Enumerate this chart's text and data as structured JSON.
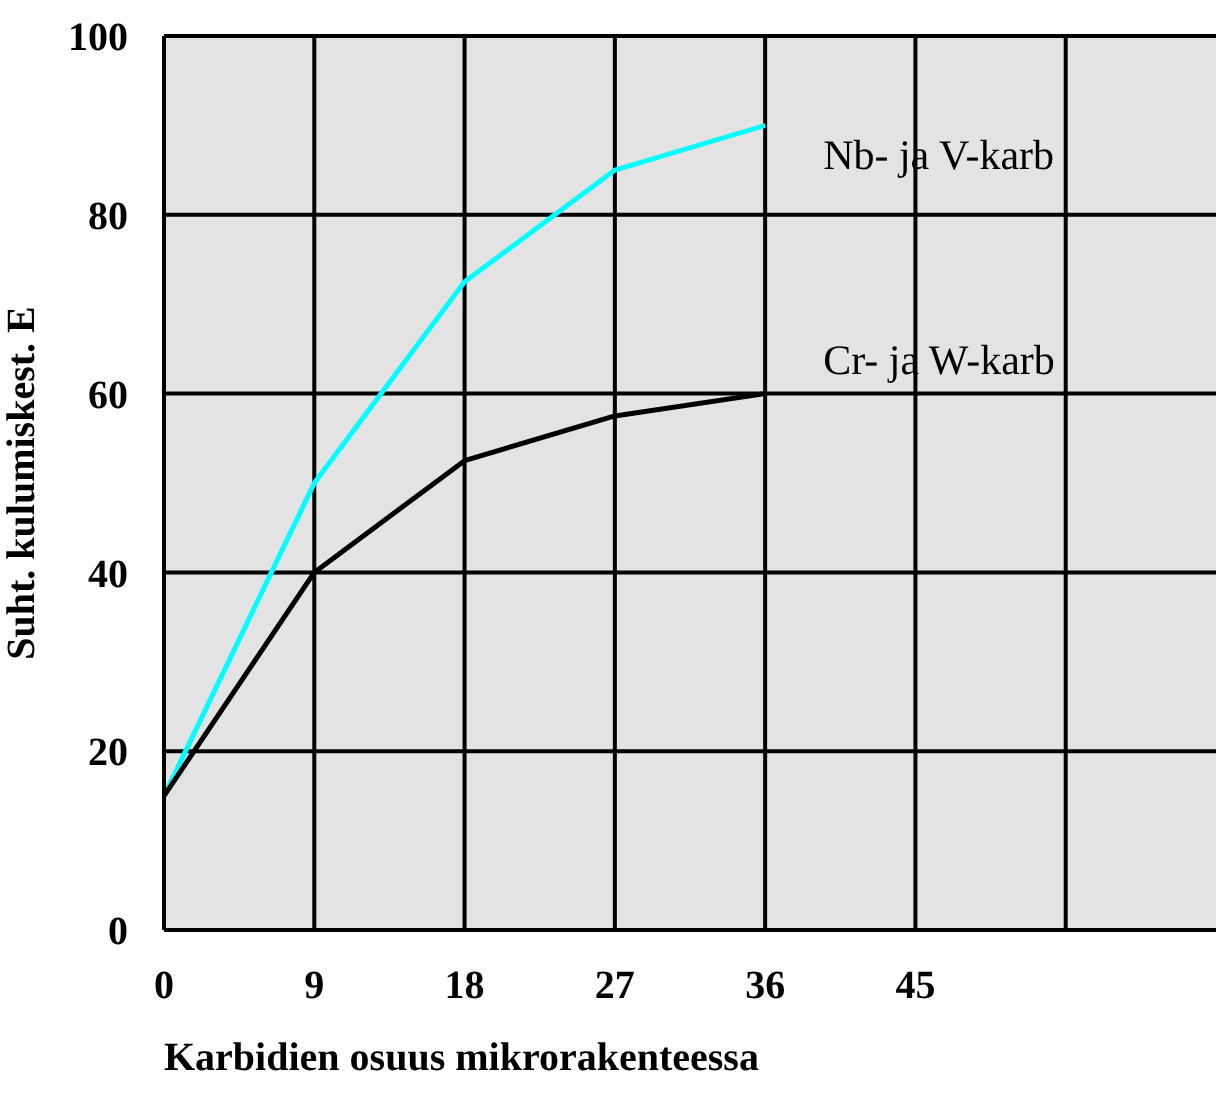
{
  "chart_data": {
    "type": "line",
    "xlabel": "Karbidien osuus mikrorakenteessa",
    "ylabel": "Suht. kulumiskest. E",
    "x": [
      0,
      9,
      18,
      27,
      36
    ],
    "series": [
      {
        "name": "Nb- ja V-karb",
        "color": "#00ffff",
        "values": [
          15,
          50,
          72.5,
          85,
          90
        ]
      },
      {
        "name": "Cr- ja W-karb",
        "color": "#000000",
        "values": [
          15,
          40,
          52.5,
          57.5,
          60
        ]
      }
    ],
    "xlim": [
      0,
      63
    ],
    "xticks": [
      0,
      9,
      18,
      27,
      36,
      45,
      {
        "value": 54,
        "label": null
      }
    ],
    "ylim": [
      0,
      100
    ],
    "yticks": [
      0,
      20,
      40,
      60,
      80,
      100
    ],
    "grid": true,
    "legend": false,
    "marker": "none",
    "line_style": "solid"
  }
}
